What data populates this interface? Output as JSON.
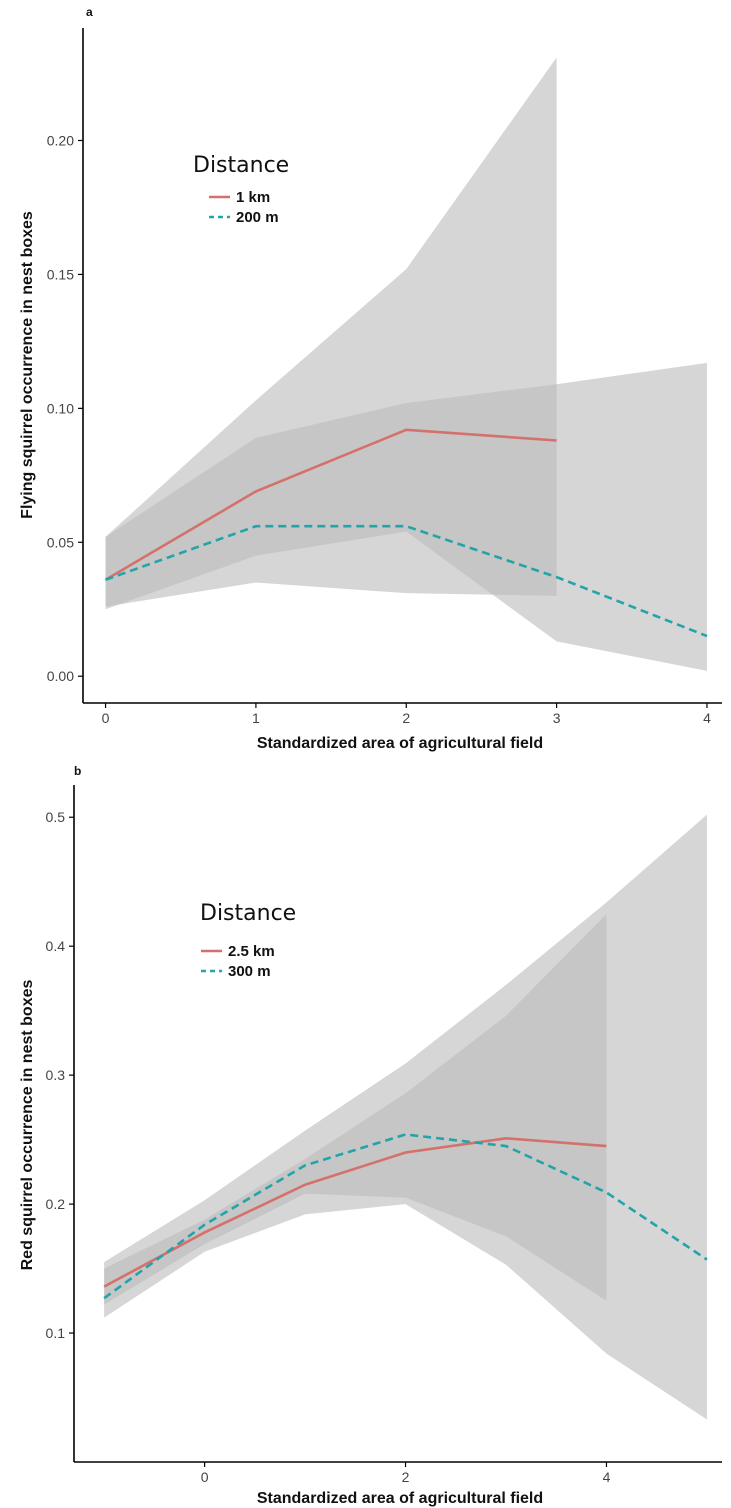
{
  "colors": {
    "series_solid": "#d4716a",
    "series_dashed": "#22a4a8",
    "ribbon": "#bdbdbd"
  },
  "chart_data": [
    {
      "panel_label": "a",
      "type": "line",
      "xlabel": "Standardized area of agricultural field",
      "ylabel": "Flying squirrel occurrence in nest boxes",
      "xlim": [
        -0.15,
        4.1
      ],
      "ylim": [
        -0.01,
        0.242
      ],
      "x_ticks": [
        0,
        1,
        2,
        3,
        4
      ],
      "y_ticks": [
        0.0,
        0.05,
        0.1,
        0.15,
        0.2
      ],
      "y_tick_labels": [
        "0.00",
        "0.05",
        "0.10",
        "0.15",
        "0.20"
      ],
      "grid": false,
      "legend": {
        "title": "Distance",
        "position": "top-left",
        "entries": [
          {
            "label": "1 km",
            "line": "solid"
          },
          {
            "label": "200 m",
            "line": "dashed"
          }
        ]
      },
      "series": [
        {
          "name": "1 km",
          "line": "solid",
          "x": [
            0,
            1,
            2,
            3
          ],
          "y": [
            0.036,
            0.069,
            0.092,
            0.088
          ],
          "lower": [
            0.026,
            0.035,
            0.031,
            0.03
          ],
          "upper": [
            0.052,
            0.103,
            0.152,
            0.231
          ]
        },
        {
          "name": "200 m",
          "line": "dashed",
          "x": [
            0,
            1,
            2,
            3,
            4
          ],
          "y": [
            0.036,
            0.056,
            0.056,
            0.037,
            0.015
          ],
          "lower": [
            0.025,
            0.045,
            0.054,
            0.013,
            0.002
          ],
          "upper": [
            0.052,
            0.089,
            0.102,
            0.109,
            0.117
          ]
        }
      ]
    },
    {
      "panel_label": "b",
      "type": "line",
      "xlabel": "Standardized area of agricultural field",
      "ylabel": "Red squirrel occurrence in nest boxes",
      "xlim": [
        -1.3,
        5.15
      ],
      "ylim": [
        0.0,
        0.525
      ],
      "x_ticks": [
        0,
        2,
        4
      ],
      "y_ticks": [
        0.1,
        0.2,
        0.3,
        0.4,
        0.5
      ],
      "y_tick_labels": [
        "0.1",
        "0.2",
        "0.3",
        "0.4",
        "0.5"
      ],
      "grid": false,
      "legend": {
        "title": "Distance",
        "position": "top-left",
        "entries": [
          {
            "label": "2.5 km",
            "line": "solid"
          },
          {
            "label": "300 m",
            "line": "dashed"
          }
        ]
      },
      "series": [
        {
          "name": "2.5 km",
          "line": "solid",
          "x": [
            -1,
            0,
            1,
            2,
            3,
            4
          ],
          "y": [
            0.136,
            0.178,
            0.215,
            0.24,
            0.251,
            0.245
          ],
          "lower": [
            0.122,
            0.169,
            0.208,
            0.205,
            0.175,
            0.125
          ],
          "upper": [
            0.15,
            0.188,
            0.235,
            0.286,
            0.346,
            0.425
          ]
        },
        {
          "name": "300 m",
          "line": "dashed",
          "x": [
            -1,
            0,
            1,
            2,
            3,
            4,
            5
          ],
          "y": [
            0.127,
            0.184,
            0.23,
            0.254,
            0.245,
            0.209,
            0.157
          ],
          "lower": [
            0.112,
            0.163,
            0.192,
            0.2,
            0.153,
            0.084,
            0.033
          ],
          "upper": [
            0.155,
            0.203,
            0.257,
            0.309,
            0.37,
            0.434,
            0.502
          ]
        }
      ]
    }
  ]
}
